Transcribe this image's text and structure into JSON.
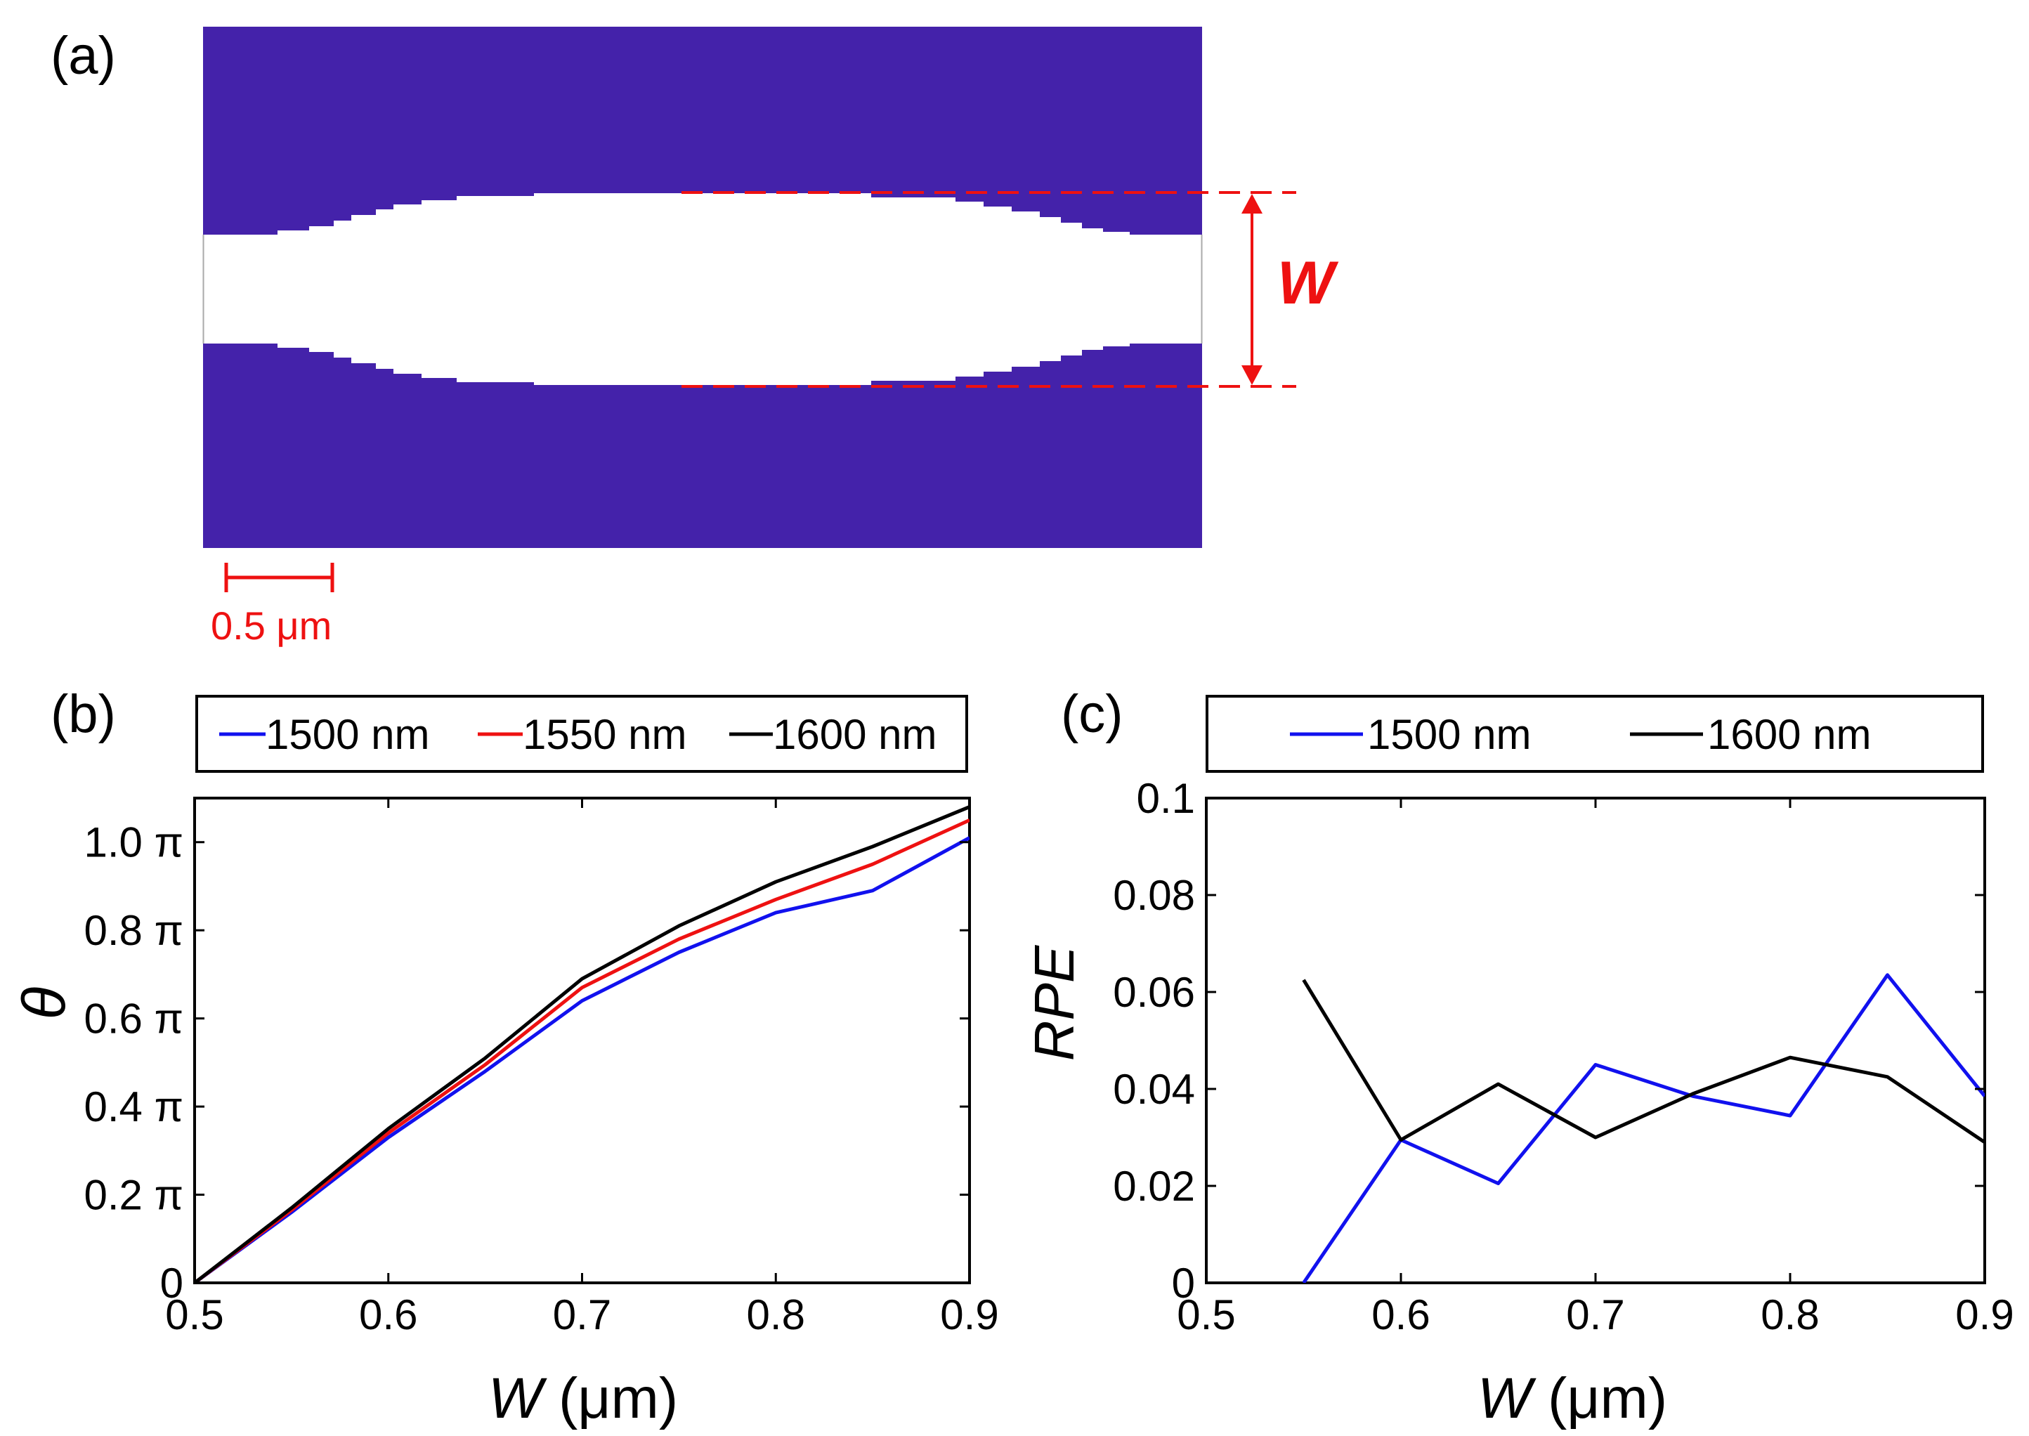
{
  "colors": {
    "guide": "#ee1111",
    "device": "#4422aa",
    "blue": "#1111ee",
    "red": "#ee1111",
    "black": "#000000"
  },
  "panel_a": {
    "label": "(a)",
    "width_symbol": "W",
    "scalebar_label": "0.5 μm"
  },
  "chart_data": [
    {
      "type": "line",
      "panel_label": "(b)",
      "xlabel": "W",
      "xlabel_unit": " (μm)",
      "ylabel": "θ",
      "xlim": [
        0.5,
        0.9
      ],
      "ylim": [
        0,
        1.1
      ],
      "xticks": [
        0.5,
        0.6,
        0.7,
        0.8,
        0.9
      ],
      "xtick_labels": [
        "0.5",
        "0.6",
        "0.7",
        "0.8",
        "0.9"
      ],
      "yticks": [
        0,
        0.2,
        0.4,
        0.6,
        0.8,
        1.0
      ],
      "ytick_labels": [
        "0",
        "0.2 π",
        "0.4 π",
        "0.6 π",
        "0.8 π",
        "1.0 π"
      ],
      "x": [
        0.5,
        0.55,
        0.6,
        0.65,
        0.7,
        0.75,
        0.8,
        0.85,
        0.9
      ],
      "series": [
        {
          "name": "1500 nm",
          "color": "#1111ee",
          "values": [
            0.0,
            0.16,
            0.33,
            0.48,
            0.64,
            0.75,
            0.84,
            0.89,
            1.01
          ]
        },
        {
          "name": "1550 nm",
          "color": "#ee1111",
          "values": [
            0.0,
            0.165,
            0.34,
            0.495,
            0.67,
            0.78,
            0.87,
            0.95,
            1.05
          ]
        },
        {
          "name": "1600 nm",
          "color": "#000000",
          "values": [
            0.0,
            0.17,
            0.35,
            0.51,
            0.69,
            0.81,
            0.91,
            0.99,
            1.08
          ]
        }
      ]
    },
    {
      "type": "line",
      "panel_label": "(c)",
      "xlabel": "W",
      "xlabel_unit": " (μm)",
      "ylabel": "RPE",
      "xlim": [
        0.5,
        0.9
      ],
      "ylim": [
        0,
        0.1
      ],
      "xticks": [
        0.5,
        0.6,
        0.7,
        0.8,
        0.9
      ],
      "xtick_labels": [
        "0.5",
        "0.6",
        "0.7",
        "0.8",
        "0.9"
      ],
      "yticks": [
        0,
        0.02,
        0.04,
        0.06,
        0.08,
        0.1
      ],
      "ytick_labels": [
        "0",
        "0.02",
        "0.04",
        "0.06",
        "0.08",
        "0.1"
      ],
      "x": [
        0.55,
        0.6,
        0.65,
        0.7,
        0.75,
        0.8,
        0.85,
        0.9
      ],
      "series": [
        {
          "name": "1500 nm",
          "color": "#1111ee",
          "values": [
            0.0,
            0.0295,
            0.0205,
            0.045,
            0.0385,
            0.0345,
            0.0635,
            0.0385
          ]
        },
        {
          "name": "1600 nm",
          "color": "#000000",
          "values": [
            0.0625,
            0.0295,
            0.041,
            0.03,
            0.039,
            0.0465,
            0.0425,
            0.029
          ]
        }
      ]
    }
  ]
}
